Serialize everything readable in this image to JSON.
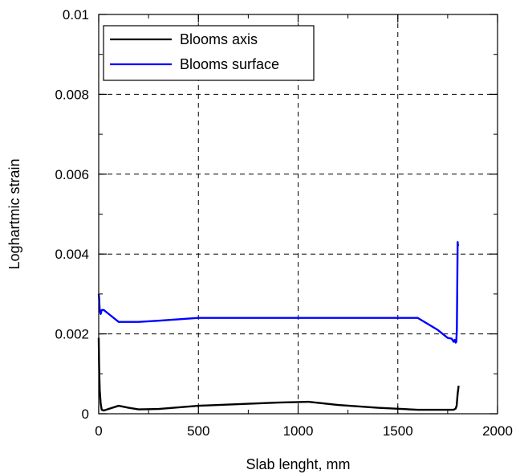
{
  "chart_data": {
    "type": "line",
    "title": "",
    "xlabel": "Slab lenght, mm",
    "ylabel": "Loghartmic strain",
    "xlim": [
      0,
      2000
    ],
    "ylim": [
      0,
      0.01
    ],
    "x_ticks": [
      0,
      500,
      1000,
      1500,
      2000
    ],
    "x_tick_labels": [
      "0",
      "500",
      "1000",
      "1500",
      "2000"
    ],
    "y_ticks": [
      0,
      0.002,
      0.004,
      0.006,
      0.008,
      0.01
    ],
    "y_tick_labels": [
      "0",
      "0.002",
      "0.004",
      "0.006",
      "0.008",
      "0.01"
    ],
    "grid": true,
    "legend_position": "top-left",
    "series": [
      {
        "name": "Blooms axis",
        "color": "#000000",
        "x": [
          0,
          2,
          5,
          10,
          15,
          25,
          50,
          100,
          150,
          200,
          300,
          500,
          700,
          900,
          1050,
          1200,
          1400,
          1600,
          1780,
          1790,
          1795,
          1800,
          1805
        ],
        "y": [
          0.0019,
          0.0012,
          0.0006,
          0.00025,
          0.0001,
          8e-05,
          0.00012,
          0.0002,
          0.00015,
          0.00011,
          0.00012,
          0.0002,
          0.00024,
          0.00028,
          0.0003,
          0.00022,
          0.00015,
          0.0001,
          0.0001,
          0.00013,
          0.0002,
          0.0005,
          0.0007
        ]
      },
      {
        "name": "Blooms surface",
        "color": "#0000ff",
        "x": [
          0,
          2,
          5,
          10,
          15,
          25,
          50,
          100,
          200,
          300,
          500,
          700,
          1000,
          1300,
          1600,
          1700,
          1750,
          1770,
          1780,
          1785,
          1790,
          1793,
          1796,
          1800,
          1802
        ],
        "y": [
          0.003,
          0.0029,
          0.0026,
          0.0025,
          0.0026,
          0.0026,
          0.0025,
          0.0023,
          0.0023,
          0.00233,
          0.0024,
          0.0024,
          0.0024,
          0.0024,
          0.0024,
          0.0021,
          0.0019,
          0.00188,
          0.0018,
          0.00185,
          0.00178,
          0.0018,
          0.0021,
          0.0043,
          0.0042
        ]
      }
    ]
  }
}
